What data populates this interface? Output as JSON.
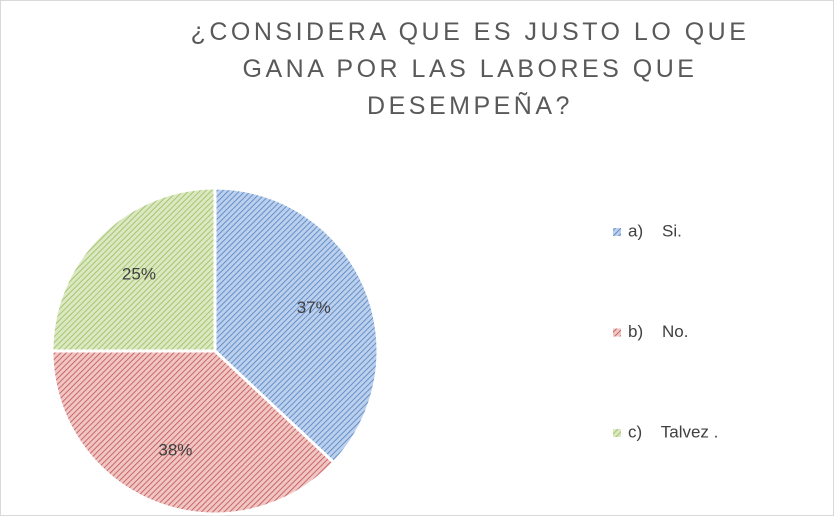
{
  "chart_data": {
    "type": "pie",
    "title": "¿CONSIDERA QUE ES JUSTO LO QUE GANA POR LAS LABORES QUE DESEMPEÑA?",
    "categories": [
      "a)    Si.",
      "b)    No.",
      "c)    Talvez ."
    ],
    "values": [
      37,
      38,
      25
    ],
    "value_labels": [
      "37%",
      "38%",
      "25%"
    ],
    "colors": [
      "#4f81bd",
      "#c0504d",
      "#9bbb59"
    ],
    "legend": "right"
  }
}
